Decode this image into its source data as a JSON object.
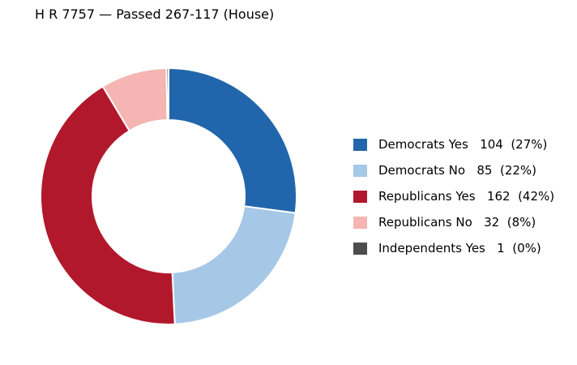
{
  "chart_data": {
    "type": "pie",
    "title": "H R 7757 — Passed 267-117 (House)",
    "categories": [
      "Democrats Yes",
      "Democrats No",
      "Republicans Yes",
      "Republicans No",
      "Independents Yes"
    ],
    "values": [
      104,
      85,
      162,
      32,
      1
    ],
    "percent_labels": [
      "27%",
      "22%",
      "42%",
      "8%",
      "0%"
    ],
    "colors": [
      "#2166ac",
      "#a6c8e7",
      "#b2182b",
      "#f4b5b3",
      "#4d4d4d"
    ],
    "legend": [
      {
        "label": "Democrats Yes   104  (27%)",
        "color": "#2166ac"
      },
      {
        "label": "Democrats No   85  (22%)",
        "color": "#a6c8e7"
      },
      {
        "label": "Republicans Yes   162  (42%)",
        "color": "#b2182b"
      },
      {
        "label": "Republicans No   32  (8%)",
        "color": "#f4b5b3"
      },
      {
        "label": "Independents Yes   1  (0%)",
        "color": "#4d4d4d"
      }
    ],
    "legend_position": "right",
    "style": "donut",
    "start_angle": "top",
    "direction": "clockwise"
  }
}
